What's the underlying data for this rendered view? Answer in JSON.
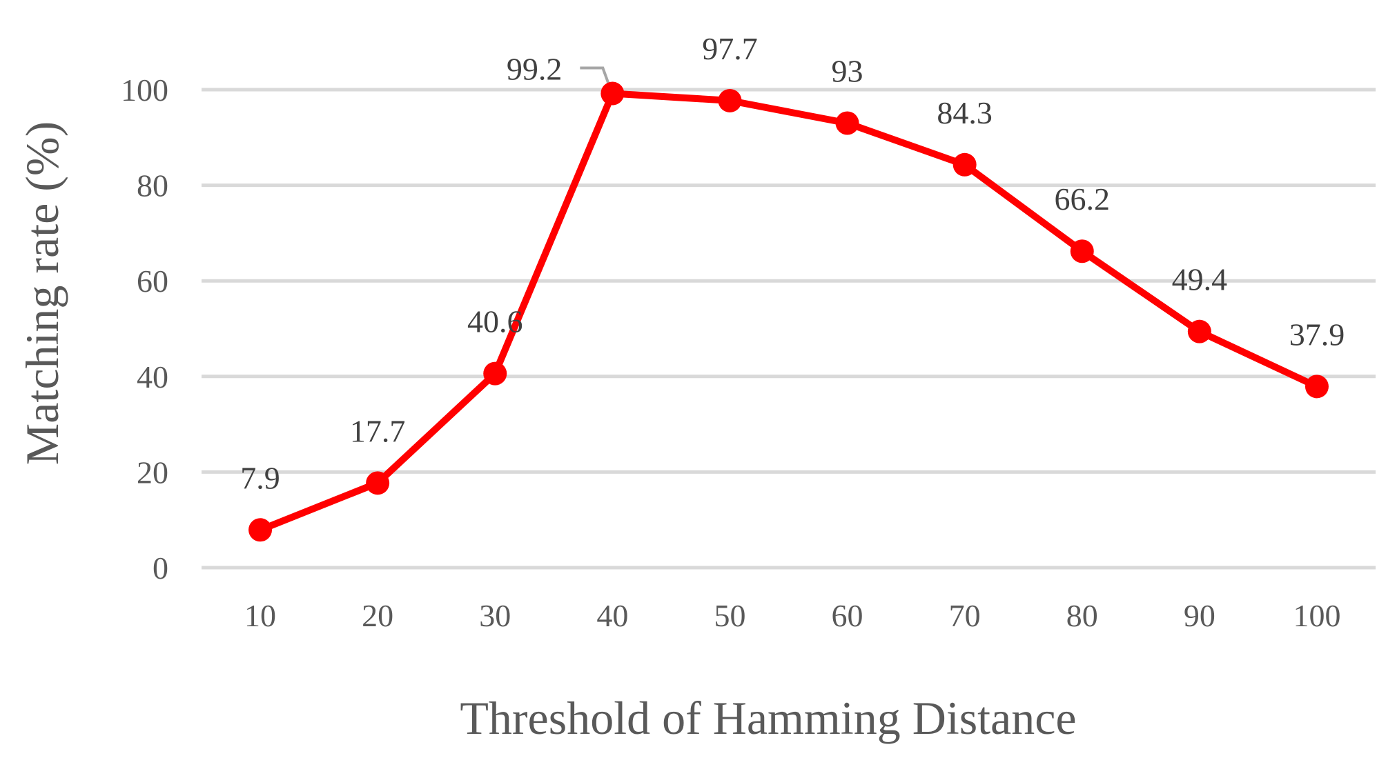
{
  "chart_data": {
    "type": "line",
    "title": "",
    "xlabel": "Threshold of Hamming Distance",
    "ylabel": "Matching rate (%)",
    "categories": [
      "10",
      "20",
      "30",
      "40",
      "50",
      "60",
      "70",
      "80",
      "90",
      "100"
    ],
    "series": [
      {
        "values": [
          7.9,
          17.7,
          40.6,
          99.2,
          97.7,
          93,
          84.3,
          66.2,
          49.4,
          37.9
        ],
        "color": "#ff0000"
      }
    ],
    "data_labels": [
      "7.9",
      "17.7",
      "40.6",
      "99.2",
      "97.7",
      "93",
      "84.3",
      "66.2",
      "49.4",
      "37.9"
    ],
    "y_ticks": [
      "0",
      "20",
      "40",
      "60",
      "80",
      "100"
    ],
    "ylim": [
      0,
      100
    ],
    "grid": true,
    "legend": "none",
    "colors": {
      "gridline": "#d9d9d9",
      "tick_text": "#595959",
      "label_text": "#404040",
      "leader_line": "#a6a6a6"
    }
  }
}
